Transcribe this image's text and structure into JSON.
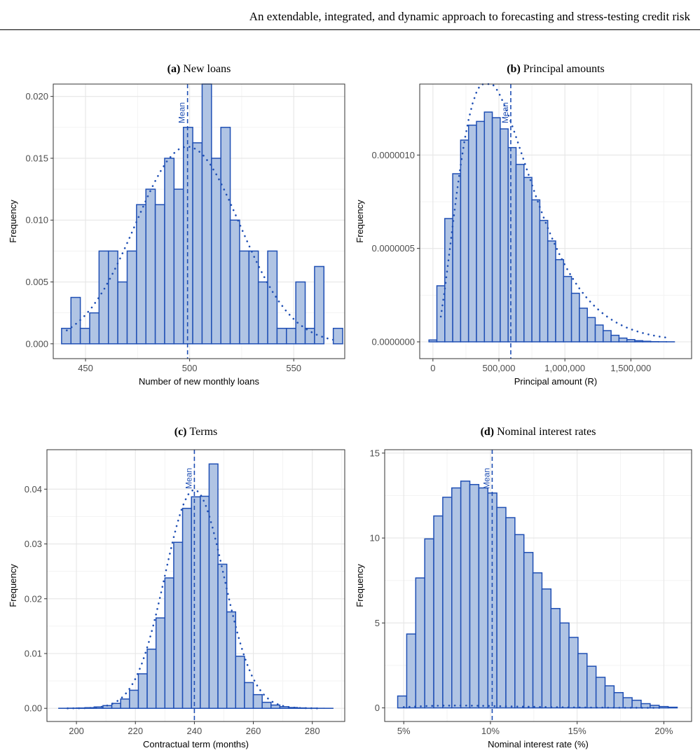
{
  "page": {
    "running_header": "An extendable, integrated, and dynamic approach to forecasting and stress-testing credit risk"
  },
  "colors": {
    "bar_fill": "#b0c4e4",
    "bar_stroke": "#1f4fb4",
    "line": "#1f4fb4",
    "grid_major": "#e6e6e6",
    "grid_minor": "#f3f3f3",
    "panel_border": "#333333"
  },
  "chart_data": [
    {
      "type": "bar",
      "label": "(a)",
      "title": "New loans",
      "xlabel": "Number of new monthly loans",
      "ylabel": "Frequency",
      "xlim": [
        434.5,
        574.5
      ],
      "ylim": [
        -0.0012,
        0.021
      ],
      "x_ticks": [
        450,
        500,
        550
      ],
      "x_tick_labels": [
        "450",
        "500",
        "550"
      ],
      "y_ticks": [
        0,
        0.005,
        0.01,
        0.015,
        0.02
      ],
      "y_tick_labels": [
        "0.000",
        "0.005",
        "0.010",
        "0.015",
        "0.020"
      ],
      "bin_start": 438.5,
      "bin_width": 4.5,
      "values": [
        0.00125,
        0.00375,
        0.00125,
        0.0025,
        0.0075,
        0.0075,
        0.005,
        0.0075,
        0.01125,
        0.0125,
        0.01125,
        0.015,
        0.0125,
        0.0175,
        0.01625,
        0.021,
        0.015,
        0.0175,
        0.01,
        0.0075,
        0.0075,
        0.005,
        0.0075,
        0.00125,
        0.00125,
        0.005,
        0.00125,
        0.00625,
        0.0,
        0.00125
      ],
      "mean": 499,
      "mean_label": "Mean",
      "fit": {
        "kind": "normal",
        "mean": 499,
        "sd": 25,
        "scale": 1,
        "from": 441,
        "to": 570,
        "step": 3
      }
    },
    {
      "type": "bar",
      "label": "(b)",
      "title": "Principal amounts",
      "xlabel": "Principal amount (R)",
      "ylabel": "Frequency",
      "xlim": [
        -100000,
        1960000
      ],
      "ylim": [
        -9e-08,
        1.38e-06
      ],
      "x_ticks": [
        0,
        500000,
        1000000,
        1500000
      ],
      "x_tick_labels": [
        "0",
        "500,000",
        "1,000,000",
        "1,500,000"
      ],
      "y_ticks": [
        0,
        5e-07,
        1e-06
      ],
      "y_tick_labels": [
        "0.0000000",
        "0.0000005",
        "0.0000010"
      ],
      "bin_start": -30000,
      "bin_width": 60000,
      "values": [
        1e-08,
        3e-07,
        6.6e-07,
        9e-07,
        1.08e-06,
        1.16e-06,
        1.18e-06,
        1.23e-06,
        1.2e-06,
        1.14e-06,
        1.04e-06,
        9.5e-07,
        8.8e-07,
        7.6e-07,
        6.5e-07,
        5.4e-07,
        4.4e-07,
        3.5e-07,
        2.6e-07,
        1.8e-07,
        1.3e-07,
        9e-08,
        6e-08,
        3.5e-08,
        2e-08,
        1.2e-08,
        6e-09,
        3e-09,
        1e-09,
        5e-10,
        2e-10
      ],
      "mean": 590000,
      "mean_label": "Mean",
      "fit": {
        "kind": "gamma",
        "shape": 3.2,
        "rate": 5.4e-06,
        "scale": 1,
        "from": 60000,
        "to": 1800000,
        "step": 30000
      }
    },
    {
      "type": "bar",
      "label": "(c)",
      "title": "Terms",
      "xlabel": "Contractual term (months)",
      "ylabel": "Frequency",
      "xlim": [
        190,
        291
      ],
      "ylim": [
        -0.0024,
        0.0472
      ],
      "x_ticks": [
        200,
        220,
        240,
        260,
        280
      ],
      "x_tick_labels": [
        "200",
        "220",
        "240",
        "260",
        "280"
      ],
      "y_ticks": [
        0,
        0.01,
        0.02,
        0.03,
        0.04
      ],
      "y_tick_labels": [
        "0.00",
        "0.01",
        "0.02",
        "0.03",
        "0.04"
      ],
      "bin_start": 194,
      "bin_width": 3,
      "values": [
        1e-05,
        3e-05,
        6e-05,
        0.00012,
        0.00025,
        0.0005,
        0.0009,
        0.0017,
        0.0033,
        0.0063,
        0.0108,
        0.0165,
        0.0238,
        0.0303,
        0.0365,
        0.0386,
        0.0387,
        0.0446,
        0.0263,
        0.0176,
        0.0095,
        0.0047,
        0.0025,
        0.0011,
        0.0006,
        0.0003,
        0.00015,
        7e-05,
        3e-05,
        1e-05,
        5e-06
      ],
      "mean": 240,
      "mean_label": "Mean",
      "fit": {
        "kind": "normal",
        "mean": 240,
        "sd": 10,
        "scale": 1,
        "from": 197,
        "to": 284,
        "step": 1.2
      }
    },
    {
      "type": "bar",
      "label": "(d)",
      "title": "Nominal interest rates",
      "xlabel": "Nominal interest rate (%)",
      "ylabel": "Frequency",
      "xlim": [
        0.039,
        0.216
      ],
      "ylim": [
        -0.8,
        15.2
      ],
      "x_ticks": [
        0.05,
        0.1,
        0.15,
        0.2
      ],
      "x_tick_labels": [
        "5%",
        "10%",
        "15%",
        "20%"
      ],
      "y_ticks": [
        0,
        5,
        10,
        15
      ],
      "y_tick_labels": [
        "0",
        "5",
        "10",
        "15"
      ],
      "bin_start": 0.0465,
      "bin_width": 0.0052,
      "values": [
        0.7,
        4.35,
        7.65,
        9.95,
        11.3,
        12.4,
        12.95,
        13.35,
        13.15,
        12.95,
        12.65,
        11.8,
        11.2,
        10.2,
        9.15,
        7.95,
        7.0,
        5.85,
        5.0,
        4.15,
        3.2,
        2.45,
        1.8,
        1.3,
        0.9,
        0.6,
        0.45,
        0.25,
        0.15,
        0.08,
        0.04
      ],
      "mean": 0.101,
      "mean_label": "Mean",
      "fit": {
        "kind": "gamma",
        "shape": 4.2,
        "rate": 64,
        "shift": 0.03,
        "scale": 0.01,
        "from": 0.05,
        "to": 0.2,
        "step": 0.0026
      }
    }
  ]
}
